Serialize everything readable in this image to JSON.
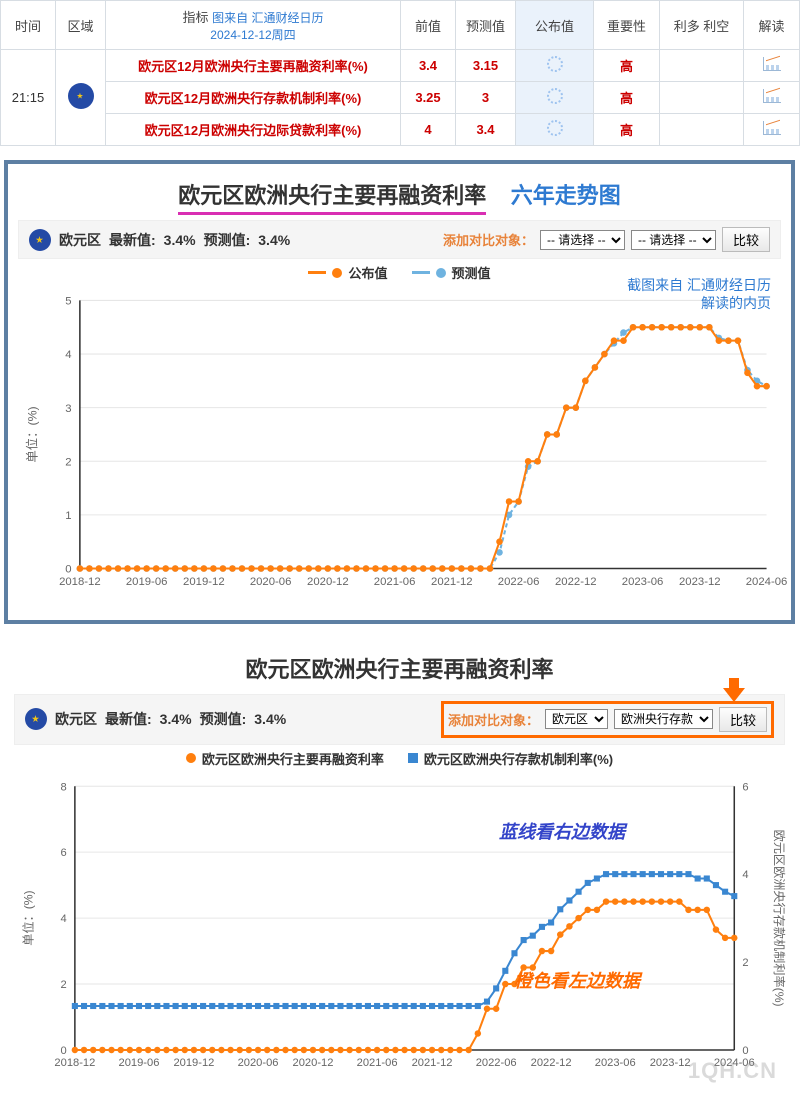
{
  "table": {
    "source_line1": "图来自 汇通财经日历",
    "source_line2": "2024-12-12周四",
    "headers": {
      "time": "时间",
      "region": "区域",
      "indicator": "指标",
      "prev": "前值",
      "forecast": "预测值",
      "published": "公布值",
      "importance": "重要性",
      "adv": "利多 利空",
      "interpret": "解读"
    },
    "time": "21:15",
    "rows": [
      {
        "indicator": "欧元区12月欧洲央行主要再融资利率(%)",
        "prev": "3.4",
        "forecast": "3.15",
        "importance": "高"
      },
      {
        "indicator": "欧元区12月欧洲央行存款机制利率(%)",
        "prev": "3.25",
        "forecast": "3",
        "importance": "高"
      },
      {
        "indicator": "欧元区12月欧洲央行边际贷款利率(%)",
        "prev": "4",
        "forecast": "3.4",
        "importance": "高"
      }
    ]
  },
  "chart1": {
    "title_main": "欧元区欧洲央行主要再融资利率",
    "title_sub": "六年走势图",
    "region": "欧元区",
    "latest_label": "最新值:",
    "latest_value": "3.4%",
    "forecast_label": "预测值:",
    "forecast_value": "3.4%",
    "compare_label": "添加对比对象：",
    "select_placeholder": "-- 请选择 --",
    "compare_btn": "比较",
    "legend_published": "公布值",
    "legend_forecast": "预测值",
    "note_line1": "截图来自 汇通财经日历",
    "note_line2": "解读的内页",
    "colors": {
      "published": "#ff7f0e",
      "forecast": "#6fb3e0",
      "grid": "#e6e6e6",
      "axis": "#333333",
      "bg": "#ffffff"
    },
    "y": {
      "min": 0,
      "max": 5,
      "step": 1,
      "label": "单位：(%)"
    },
    "x_labels": [
      "2018-12",
      "2019-06",
      "2019-12",
      "2020-06",
      "2020-12",
      "2021-06",
      "2021-12",
      "2022-06",
      "2022-12",
      "2023-06",
      "2023-12",
      "2024-06"
    ],
    "series_published": [
      0,
      0,
      0,
      0,
      0,
      0,
      0,
      0,
      0,
      0,
      0,
      0,
      0,
      0,
      0,
      0,
      0,
      0,
      0,
      0,
      0,
      0,
      0,
      0,
      0,
      0,
      0,
      0,
      0,
      0,
      0,
      0,
      0,
      0,
      0,
      0,
      0,
      0,
      0,
      0,
      0,
      0,
      0,
      0,
      0.5,
      1.25,
      1.25,
      2.0,
      2.0,
      2.5,
      2.5,
      3.0,
      3.0,
      3.5,
      3.75,
      4.0,
      4.25,
      4.25,
      4.5,
      4.5,
      4.5,
      4.5,
      4.5,
      4.5,
      4.5,
      4.5,
      4.5,
      4.25,
      4.25,
      4.25,
      3.65,
      3.4,
      3.4
    ],
    "series_forecast": [
      0,
      0,
      0,
      0,
      0,
      0,
      0,
      0,
      0,
      0,
      0,
      0,
      0,
      0,
      0,
      0,
      0,
      0,
      0,
      0,
      0,
      0,
      0,
      0,
      0,
      0,
      0,
      0,
      0,
      0,
      0,
      0,
      0,
      0,
      0,
      0,
      0,
      0,
      0,
      0,
      0,
      0,
      0,
      0,
      0.3,
      1.0,
      1.25,
      1.9,
      2.0,
      2.5,
      2.5,
      3.0,
      3.0,
      3.5,
      3.75,
      4.0,
      4.2,
      4.4,
      4.5,
      4.5,
      4.5,
      4.5,
      4.5,
      4.5,
      4.5,
      4.5,
      4.5,
      4.3,
      4.25,
      4.25,
      3.7,
      3.5,
      3.4
    ],
    "marker_radius": 3.2
  },
  "chart2": {
    "title_main": "欧元区欧洲央行主要再融资利率",
    "region": "欧元区",
    "latest_label": "最新值:",
    "latest_value": "3.4%",
    "forecast_label": "预测值:",
    "forecast_value": "3.4%",
    "compare_label": "添加对比对象：",
    "select1_value": "欧元区",
    "select2_value": "欧洲央行存款",
    "compare_btn": "比较",
    "legend_a": "欧元区欧洲央行主要再融资利率",
    "legend_b": "欧元区欧洲央行存款机制利率(%)",
    "annotation_blue": "蓝线看右边数据",
    "annotation_orange": "橙色看左边数据",
    "watermark": "1QH.CN",
    "colors": {
      "a": "#ff7f0e",
      "b": "#3a87d1",
      "grid": "#e6e6e6",
      "axis": "#333333",
      "annotation_blue": "#3344c9",
      "annotation_orange": "#ff6a00"
    },
    "yL": {
      "min": 0,
      "max": 8,
      "step": 2,
      "label": "单位：(%)"
    },
    "yR": {
      "min": 0,
      "max": 6,
      "step": 2,
      "label": "欧元区欧洲央行存款机制利率(%)"
    },
    "x_labels": [
      "2018-12",
      "2019-06",
      "2019-12",
      "2020-06",
      "2020-12",
      "2021-06",
      "2021-12",
      "2022-06",
      "2022-12",
      "2023-06",
      "2023-12",
      "2024-06"
    ],
    "series_a": [
      0,
      0,
      0,
      0,
      0,
      0,
      0,
      0,
      0,
      0,
      0,
      0,
      0,
      0,
      0,
      0,
      0,
      0,
      0,
      0,
      0,
      0,
      0,
      0,
      0,
      0,
      0,
      0,
      0,
      0,
      0,
      0,
      0,
      0,
      0,
      0,
      0,
      0,
      0,
      0,
      0,
      0,
      0,
      0,
      0.5,
      1.25,
      1.25,
      2.0,
      2.0,
      2.5,
      2.5,
      3.0,
      3.0,
      3.5,
      3.75,
      4.0,
      4.25,
      4.25,
      4.5,
      4.5,
      4.5,
      4.5,
      4.5,
      4.5,
      4.5,
      4.5,
      4.5,
      4.25,
      4.25,
      4.25,
      3.65,
      3.4,
      3.4
    ],
    "series_b": [
      1,
      1,
      1,
      1,
      1,
      1,
      1,
      1,
      1,
      1,
      1,
      1,
      1,
      1,
      1,
      1,
      1,
      1,
      1,
      1,
      1,
      1,
      1,
      1,
      1,
      1,
      1,
      1,
      1,
      1,
      1,
      1,
      1,
      1,
      1,
      1,
      1,
      1,
      1,
      1,
      1,
      1,
      1,
      1,
      1,
      1.1,
      1.4,
      1.8,
      2.2,
      2.5,
      2.6,
      2.8,
      2.9,
      3.2,
      3.4,
      3.6,
      3.8,
      3.9,
      4.0,
      4.0,
      4.0,
      4.0,
      4.0,
      4.0,
      4.0,
      4.0,
      4.0,
      4.0,
      3.9,
      3.9,
      3.75,
      3.6,
      3.5
    ],
    "marker_radius_a": 3.2,
    "marker_side_b": 6
  }
}
